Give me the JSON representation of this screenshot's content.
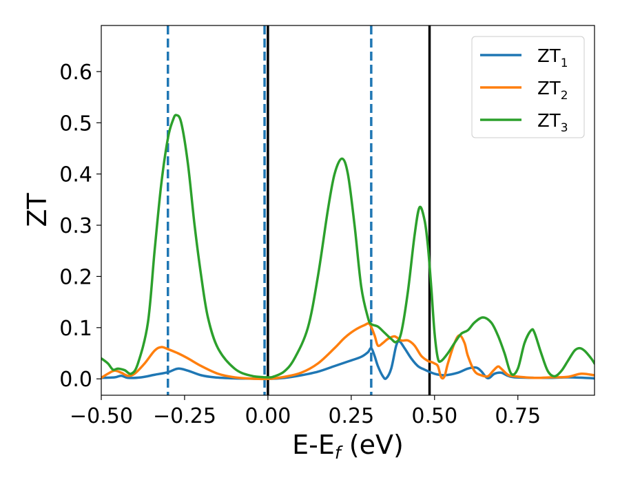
{
  "chart_data": {
    "type": "line",
    "title": "",
    "xlabel": "E-E",
    "xlabel_sub": "f",
    "xlabel_unit": " (eV)",
    "ylabel": "ZT",
    "xlim": [
      -0.5,
      0.98
    ],
    "ylim": [
      -0.032,
      0.69
    ],
    "xticks": [
      -0.5,
      -0.25,
      0.0,
      0.25,
      0.5,
      0.75
    ],
    "xtick_labels": [
      "−0.50",
      "−0.25",
      "0.00",
      "0.25",
      "0.50",
      "0.75"
    ],
    "yticks": [
      0.0,
      0.1,
      0.2,
      0.3,
      0.4,
      0.5,
      0.6
    ],
    "ytick_labels": [
      "0.0",
      "0.1",
      "0.2",
      "0.3",
      "0.4",
      "0.5",
      "0.6"
    ],
    "grid": false,
    "legend_position": "top-right",
    "series": [
      {
        "name": "ZT",
        "sub": "1",
        "color": "#1f77b4",
        "points": [
          [
            -0.5,
            0.002
          ],
          [
            -0.46,
            0.003
          ],
          [
            -0.44,
            0.006
          ],
          [
            -0.42,
            0.002
          ],
          [
            -0.38,
            0.003
          ],
          [
            -0.34,
            0.008
          ],
          [
            -0.3,
            0.013
          ],
          [
            -0.27,
            0.02
          ],
          [
            -0.24,
            0.016
          ],
          [
            -0.2,
            0.007
          ],
          [
            -0.16,
            0.003
          ],
          [
            -0.1,
            0.001
          ],
          [
            -0.05,
            0.0005
          ],
          [
            0.0,
            0.0
          ],
          [
            0.05,
            0.002
          ],
          [
            0.1,
            0.007
          ],
          [
            0.15,
            0.014
          ],
          [
            0.2,
            0.025
          ],
          [
            0.25,
            0.036
          ],
          [
            0.28,
            0.043
          ],
          [
            0.3,
            0.052
          ],
          [
            0.31,
            0.06
          ],
          [
            0.32,
            0.045
          ],
          [
            0.33,
            0.025
          ],
          [
            0.345,
            0.005
          ],
          [
            0.355,
            0.001
          ],
          [
            0.37,
            0.02
          ],
          [
            0.385,
            0.065
          ],
          [
            0.395,
            0.073
          ],
          [
            0.41,
            0.06
          ],
          [
            0.43,
            0.04
          ],
          [
            0.45,
            0.025
          ],
          [
            0.47,
            0.018
          ],
          [
            0.5,
            0.01
          ],
          [
            0.53,
            0.007
          ],
          [
            0.57,
            0.012
          ],
          [
            0.6,
            0.02
          ],
          [
            0.625,
            0.022
          ],
          [
            0.64,
            0.015
          ],
          [
            0.655,
            0.003
          ],
          [
            0.665,
            0.002
          ],
          [
            0.68,
            0.01
          ],
          [
            0.7,
            0.012
          ],
          [
            0.72,
            0.006
          ],
          [
            0.74,
            0.003
          ],
          [
            0.8,
            0.002
          ],
          [
            0.85,
            0.002
          ],
          [
            0.9,
            0.003
          ],
          [
            0.95,
            0.002
          ],
          [
            0.98,
            0.001
          ]
        ]
      },
      {
        "name": "ZT",
        "sub": "2",
        "color": "#ff7f0e",
        "points": [
          [
            -0.5,
            0.002
          ],
          [
            -0.48,
            0.01
          ],
          [
            -0.46,
            0.016
          ],
          [
            -0.44,
            0.012
          ],
          [
            -0.42,
            0.006
          ],
          [
            -0.4,
            0.01
          ],
          [
            -0.37,
            0.03
          ],
          [
            -0.34,
            0.055
          ],
          [
            -0.32,
            0.062
          ],
          [
            -0.3,
            0.058
          ],
          [
            -0.27,
            0.05
          ],
          [
            -0.24,
            0.04
          ],
          [
            -0.2,
            0.025
          ],
          [
            -0.15,
            0.01
          ],
          [
            -0.1,
            0.003
          ],
          [
            -0.05,
            0.0005
          ],
          [
            0.0,
            0.0
          ],
          [
            0.05,
            0.004
          ],
          [
            0.1,
            0.012
          ],
          [
            0.15,
            0.03
          ],
          [
            0.2,
            0.06
          ],
          [
            0.23,
            0.08
          ],
          [
            0.26,
            0.095
          ],
          [
            0.29,
            0.105
          ],
          [
            0.305,
            0.107
          ],
          [
            0.32,
            0.085
          ],
          [
            0.33,
            0.065
          ],
          [
            0.345,
            0.07
          ],
          [
            0.36,
            0.078
          ],
          [
            0.38,
            0.083
          ],
          [
            0.4,
            0.075
          ],
          [
            0.42,
            0.075
          ],
          [
            0.44,
            0.065
          ],
          [
            0.46,
            0.045
          ],
          [
            0.48,
            0.035
          ],
          [
            0.49,
            0.033
          ],
          [
            0.5,
            0.03
          ],
          [
            0.51,
            0.025
          ],
          [
            0.52,
            0.003
          ],
          [
            0.53,
            0.005
          ],
          [
            0.54,
            0.03
          ],
          [
            0.56,
            0.07
          ],
          [
            0.575,
            0.085
          ],
          [
            0.59,
            0.07
          ],
          [
            0.6,
            0.045
          ],
          [
            0.62,
            0.015
          ],
          [
            0.64,
            0.007
          ],
          [
            0.66,
            0.005
          ],
          [
            0.675,
            0.015
          ],
          [
            0.69,
            0.024
          ],
          [
            0.7,
            0.02
          ],
          [
            0.72,
            0.008
          ],
          [
            0.74,
            0.005
          ],
          [
            0.8,
            0.002
          ],
          [
            0.85,
            0.003
          ],
          [
            0.9,
            0.004
          ],
          [
            0.94,
            0.01
          ],
          [
            0.98,
            0.007
          ]
        ]
      },
      {
        "name": "ZT",
        "sub": "3",
        "color": "#2ca02c",
        "points": [
          [
            -0.5,
            0.04
          ],
          [
            -0.48,
            0.03
          ],
          [
            -0.465,
            0.018
          ],
          [
            -0.45,
            0.02
          ],
          [
            -0.43,
            0.017
          ],
          [
            -0.41,
            0.01
          ],
          [
            -0.39,
            0.03
          ],
          [
            -0.36,
            0.11
          ],
          [
            -0.34,
            0.25
          ],
          [
            -0.32,
            0.38
          ],
          [
            -0.3,
            0.47
          ],
          [
            -0.285,
            0.505
          ],
          [
            -0.275,
            0.515
          ],
          [
            -0.26,
            0.5
          ],
          [
            -0.24,
            0.42
          ],
          [
            -0.22,
            0.3
          ],
          [
            -0.2,
            0.2
          ],
          [
            -0.18,
            0.12
          ],
          [
            -0.15,
            0.06
          ],
          [
            -0.1,
            0.02
          ],
          [
            -0.05,
            0.006
          ],
          [
            0.0,
            0.003
          ],
          [
            0.02,
            0.005
          ],
          [
            0.05,
            0.015
          ],
          [
            0.08,
            0.04
          ],
          [
            0.12,
            0.1
          ],
          [
            0.15,
            0.2
          ],
          [
            0.18,
            0.33
          ],
          [
            0.2,
            0.4
          ],
          [
            0.222,
            0.43
          ],
          [
            0.24,
            0.4
          ],
          [
            0.26,
            0.3
          ],
          [
            0.28,
            0.18
          ],
          [
            0.3,
            0.12
          ],
          [
            0.31,
            0.107
          ],
          [
            0.33,
            0.102
          ],
          [
            0.35,
            0.09
          ],
          [
            0.37,
            0.078
          ],
          [
            0.385,
            0.072
          ],
          [
            0.4,
            0.09
          ],
          [
            0.42,
            0.17
          ],
          [
            0.44,
            0.28
          ],
          [
            0.455,
            0.335
          ],
          [
            0.47,
            0.31
          ],
          [
            0.48,
            0.26
          ],
          [
            0.49,
            0.18
          ],
          [
            0.5,
            0.09
          ],
          [
            0.51,
            0.04
          ],
          [
            0.52,
            0.035
          ],
          [
            0.54,
            0.05
          ],
          [
            0.56,
            0.07
          ],
          [
            0.58,
            0.088
          ],
          [
            0.6,
            0.095
          ],
          [
            0.62,
            0.11
          ],
          [
            0.645,
            0.12
          ],
          [
            0.67,
            0.11
          ],
          [
            0.69,
            0.085
          ],
          [
            0.71,
            0.05
          ],
          [
            0.73,
            0.01
          ],
          [
            0.75,
            0.02
          ],
          [
            0.77,
            0.07
          ],
          [
            0.79,
            0.095
          ],
          [
            0.8,
            0.09
          ],
          [
            0.82,
            0.05
          ],
          [
            0.84,
            0.015
          ],
          [
            0.86,
            0.005
          ],
          [
            0.88,
            0.015
          ],
          [
            0.9,
            0.035
          ],
          [
            0.92,
            0.055
          ],
          [
            0.935,
            0.06
          ],
          [
            0.95,
            0.055
          ],
          [
            0.97,
            0.04
          ],
          [
            0.98,
            0.03
          ]
        ]
      }
    ],
    "vlines": [
      {
        "x": -0.3,
        "style": "dashed",
        "color": "#1f77b4"
      },
      {
        "x": -0.01,
        "style": "dashed",
        "color": "#1f77b4"
      },
      {
        "x": 0.0,
        "style": "solid",
        "color": "#000000"
      },
      {
        "x": 0.31,
        "style": "dashed",
        "color": "#1f77b4"
      },
      {
        "x": 0.485,
        "style": "solid",
        "color": "#000000"
      }
    ]
  }
}
